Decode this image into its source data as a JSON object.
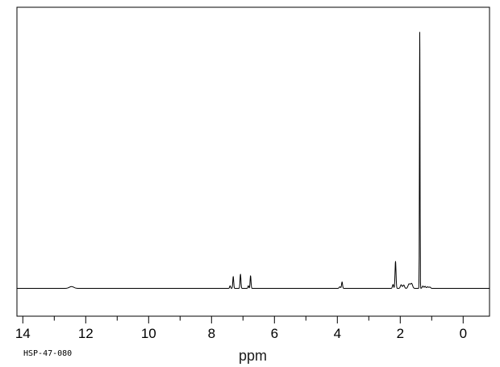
{
  "figure": {
    "sample_id": "HSP-47-080",
    "xlabel": "ppm"
  },
  "colors": {
    "trace": "#000000",
    "axis": "#000000",
    "text": "#000000",
    "background": "#ffffff"
  },
  "chart_data": {
    "type": "line",
    "subtype": "1H-NMR-spectrum",
    "title": "",
    "xlabel": "ppm",
    "ylabel": "",
    "annotation": "HSP-47-080",
    "x_axis": {
      "unit": "ppm",
      "range_left": 14.2,
      "range_right": -0.86,
      "reversed": true,
      "major_ticks": [
        14,
        12,
        10,
        8,
        6,
        4,
        2,
        0
      ],
      "minor_ticks": [
        13,
        11,
        9,
        7,
        5,
        3,
        1
      ]
    },
    "y_axis": {
      "visible": false,
      "max_intensity": 100
    },
    "grid": false,
    "legend": false,
    "peaks": [
      {
        "ppm": 12.45,
        "intensity": 0.7,
        "sigma_ppm": 0.1
      },
      {
        "ppm": 7.41,
        "intensity": 1.0,
        "sigma_ppm": 0.02
      },
      {
        "ppm": 7.31,
        "intensity": 4.6,
        "sigma_ppm": 0.02
      },
      {
        "ppm": 7.08,
        "intensity": 5.5,
        "sigma_ppm": 0.02
      },
      {
        "ppm": 6.83,
        "intensity": 1.0,
        "sigma_ppm": 0.02
      },
      {
        "ppm": 6.76,
        "intensity": 4.9,
        "sigma_ppm": 0.02
      },
      {
        "ppm": 3.92,
        "intensity": 0.6,
        "sigma_ppm": 0.03
      },
      {
        "ppm": 3.85,
        "intensity": 2.5,
        "sigma_ppm": 0.022
      },
      {
        "ppm": 2.23,
        "intensity": 1.5,
        "sigma_ppm": 0.025
      },
      {
        "ppm": 2.15,
        "intensity": 10.5,
        "sigma_ppm": 0.022
      },
      {
        "ppm": 1.97,
        "intensity": 1.4,
        "sigma_ppm": 0.035
      },
      {
        "ppm": 1.89,
        "intensity": 1.3,
        "sigma_ppm": 0.035
      },
      {
        "ppm": 1.72,
        "intensity": 1.7,
        "sigma_ppm": 0.045
      },
      {
        "ppm": 1.64,
        "intensity": 1.9,
        "sigma_ppm": 0.045
      },
      {
        "ppm": 1.38,
        "intensity": 100,
        "sigma_ppm": 0.012
      },
      {
        "ppm": 1.28,
        "intensity": 0.9,
        "sigma_ppm": 0.03
      },
      {
        "ppm": 1.21,
        "intensity": 0.8,
        "sigma_ppm": 0.03
      },
      {
        "ppm": 1.13,
        "intensity": 0.6,
        "sigma_ppm": 0.035
      },
      {
        "ppm": 1.06,
        "intensity": 0.5,
        "sigma_ppm": 0.035
      }
    ]
  }
}
